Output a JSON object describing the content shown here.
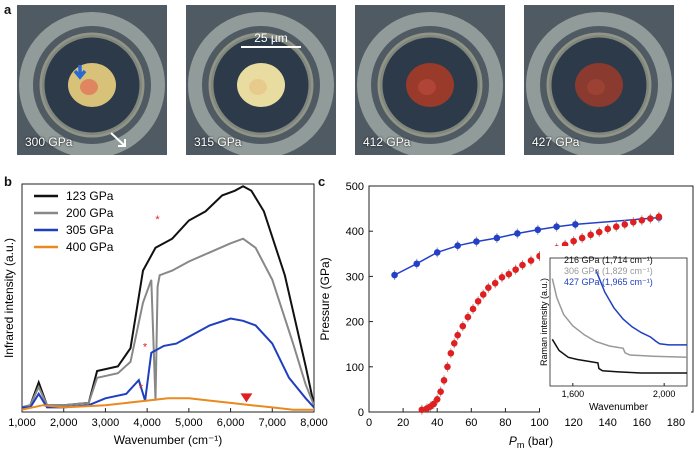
{
  "panels": {
    "a": "a",
    "b": "b",
    "c": "c"
  },
  "micrographs": [
    {
      "label": "300 GPa",
      "sample_color": "#d8c27a",
      "spot_color": "#e07a5a"
    },
    {
      "label": "315 GPa",
      "sample_color": "#e9dca0",
      "spot_color": "#e6c88a"
    },
    {
      "label": "412 GPa",
      "sample_color": "#9a3a2a",
      "spot_color": "#b4483a"
    },
    {
      "label": "427 GPa",
      "sample_color": "#8a3a2e",
      "spot_color": "#9f4436"
    }
  ],
  "scalebar": {
    "label": "25 µm"
  },
  "chart_data": [
    {
      "type": "line",
      "xlabel": "Wavenumber (cm⁻¹)",
      "ylabel": "Infrared intensity (a.u.)",
      "xlim": [
        1000,
        8000
      ],
      "ylim": [
        0,
        100
      ],
      "xticks": [
        1000,
        2000,
        3000,
        4000,
        5000,
        6000,
        7000,
        8000
      ],
      "xtick_labels": [
        "1,000",
        "2,000",
        "3,000",
        "4,000",
        "5,000",
        "6,000",
        "7,000",
        "8,000"
      ],
      "legend_position": "top-left",
      "series": [
        {
          "name": "123 GPa",
          "color": "#111111",
          "x": [
            1000,
            1200,
            1400,
            1600,
            2000,
            2600,
            2800,
            3300,
            3600,
            3900,
            4200,
            4600,
            5000,
            5400,
            5800,
            6100,
            6300,
            6500,
            6800,
            7300,
            7800,
            8000
          ],
          "y": [
            2,
            3,
            13,
            3,
            3,
            4,
            18,
            20,
            28,
            62,
            72,
            76,
            84,
            88,
            95,
            97,
            99,
            97,
            88,
            60,
            20,
            3
          ]
        },
        {
          "name": "200 GPa",
          "color": "#888888",
          "x": [
            1000,
            1200,
            1400,
            1600,
            2000,
            2600,
            2800,
            3300,
            3600,
            3900,
            4100,
            4200,
            4250,
            4300,
            4600,
            5000,
            5500,
            6000,
            6300,
            6600,
            7000,
            7500,
            7800,
            8000
          ],
          "y": [
            2,
            3,
            11,
            3,
            3,
            4,
            15,
            17,
            22,
            48,
            58,
            5,
            55,
            60,
            62,
            66,
            70,
            74,
            76,
            72,
            58,
            30,
            12,
            3
          ]
        },
        {
          "name": "305 GPa",
          "color": "#1f3fbf",
          "x": [
            1000,
            1200,
            1400,
            1600,
            2000,
            2600,
            3000,
            3500,
            3800,
            3950,
            4100,
            4400,
            4700,
            5000,
            5500,
            6000,
            6300,
            6600,
            7000,
            7400,
            7800,
            8000
          ],
          "y": [
            2,
            2,
            8,
            2,
            2,
            3,
            6,
            8,
            14,
            5,
            26,
            29,
            30,
            33,
            38,
            41,
            40,
            38,
            30,
            15,
            6,
            2
          ]
        },
        {
          "name": "400 GPa",
          "color": "#e88a1f",
          "x": [
            1000,
            1500,
            2000,
            3000,
            4000,
            4500,
            5000,
            5500,
            6000,
            6500,
            7000,
            7500,
            8000
          ],
          "y": [
            1,
            3,
            2,
            3,
            5,
            6,
            6,
            5,
            4,
            3,
            2,
            1,
            1
          ]
        }
      ],
      "annotations": [
        {
          "text": "*",
          "x": 4250,
          "y": 83,
          "color": "#e02020"
        },
        {
          "text": "*",
          "x": 3950,
          "y": 27,
          "color": "#e02020"
        },
        {
          "text": "*",
          "x": 3850,
          "y": 9,
          "color": "#e02020"
        },
        {
          "marker": "triangle-down",
          "x": 6380,
          "y": 6,
          "color": "#e02020"
        }
      ]
    },
    {
      "type": "scatter",
      "xlabel": "P",
      "xlabel_sub": "m",
      "xlabel_unit": " (bar)",
      "ylabel": "Pressure (GPa)",
      "xlim": [
        0,
        190
      ],
      "ylim": [
        0,
        500
      ],
      "xticks": [
        0,
        20,
        40,
        60,
        80,
        100,
        120,
        140,
        160,
        180
      ],
      "yticks": [
        0,
        100,
        200,
        300,
        400,
        500
      ],
      "series": [
        {
          "name": "blue",
          "color": "#2440c8",
          "marker": "circle-errorbar",
          "x": [
            15,
            28,
            40,
            52,
            63,
            75,
            87,
            99,
            110,
            121,
            170
          ],
          "y": [
            303,
            328,
            353,
            368,
            377,
            385,
            395,
            403,
            410,
            415,
            430
          ]
        },
        {
          "name": "red",
          "color": "#e02020",
          "marker": "circle-errorbar",
          "x": [
            31,
            34,
            36,
            38,
            40,
            42,
            44,
            46,
            48,
            50,
            52,
            55,
            58,
            61,
            64,
            67,
            70,
            74,
            78,
            82,
            86,
            90,
            95,
            100,
            105,
            110,
            115,
            120,
            125,
            130,
            135,
            140,
            145,
            150,
            155,
            160,
            165,
            170
          ],
          "y": [
            5,
            8,
            12,
            18,
            28,
            45,
            70,
            100,
            130,
            152,
            170,
            190,
            210,
            228,
            245,
            260,
            275,
            285,
            298,
            305,
            315,
            325,
            335,
            345,
            355,
            362,
            370,
            378,
            385,
            392,
            398,
            405,
            410,
            415,
            420,
            424,
            428,
            432
          ]
        }
      ]
    },
    {
      "type": "line",
      "inset": true,
      "xlabel": "Wavenumber",
      "ylabel": "Raman intensity (a.u.)",
      "xlim": [
        1500,
        2100
      ],
      "xticks": [
        1600,
        2000
      ],
      "xtick_labels": [
        "1,600",
        "2,000"
      ],
      "legend": [
        {
          "text": "216 GPa (1,714 cm⁻¹)",
          "color": "#111111"
        },
        {
          "text": "306 GPa (1,829 cm⁻¹)",
          "color": "#999999"
        },
        {
          "text": "427 GPa (1,965 cm⁻¹)",
          "color": "#1f3fbf"
        }
      ],
      "series": [
        {
          "name": "216 GPa",
          "color": "#111111",
          "x": [
            1510,
            1540,
            1580,
            1620,
            1680,
            1710,
            1714,
            1730,
            1800,
            1900,
            2000,
            2100
          ],
          "y": [
            38,
            28,
            22,
            20,
            18,
            17,
            12,
            10,
            9,
            8,
            8,
            8
          ]
        },
        {
          "name": "306 GPa",
          "color": "#999999",
          "x": [
            1510,
            1530,
            1560,
            1600,
            1650,
            1700,
            1760,
            1820,
            1829,
            1850,
            1950,
            2100
          ],
          "y": [
            92,
            75,
            60,
            50,
            42,
            36,
            32,
            30,
            26,
            24,
            23,
            22
          ]
        },
        {
          "name": "427 GPa",
          "color": "#1f3fbf",
          "x": [
            1700,
            1740,
            1780,
            1820,
            1860,
            1900,
            1940,
            1965,
            1980,
            2020,
            2100
          ],
          "y": [
            100,
            80,
            66,
            56,
            49,
            44,
            40,
            36,
            34,
            33,
            33
          ]
        }
      ]
    }
  ]
}
